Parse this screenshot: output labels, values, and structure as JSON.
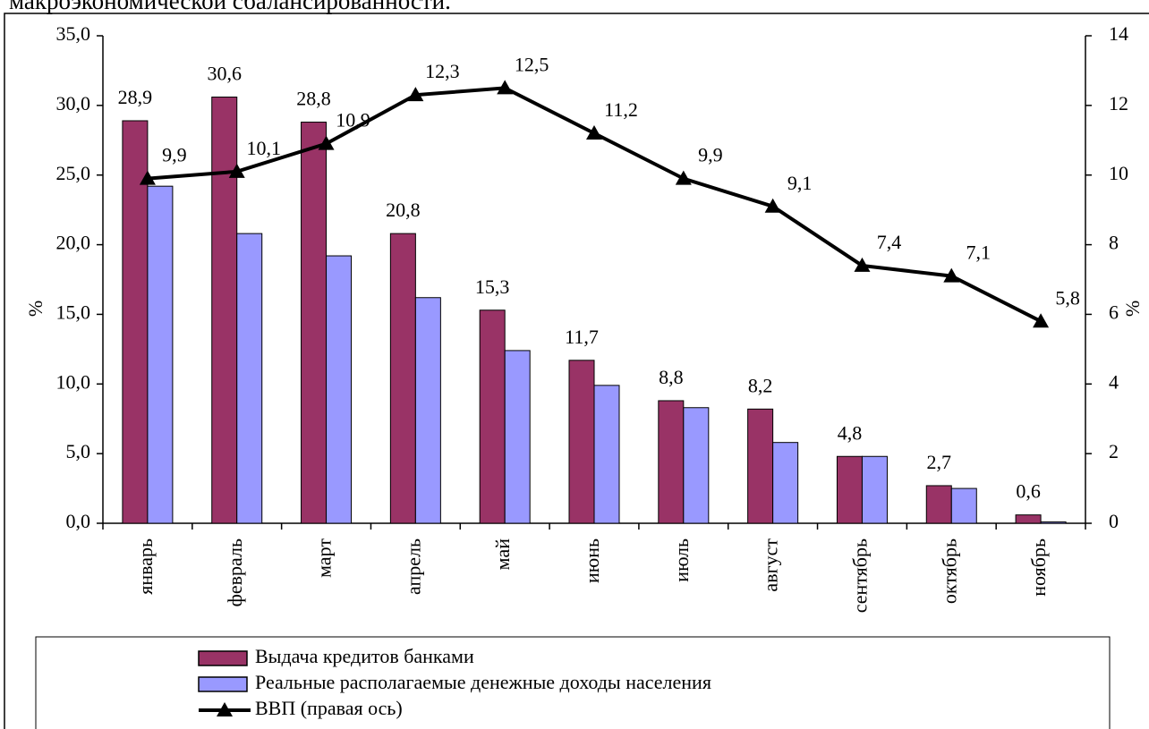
{
  "chart_data": {
    "type": "bar-line",
    "caption": "макроэкономической сбалансированности.",
    "ylabel": "%",
    "y2label": "%",
    "categories": [
      "январь",
      "февраль",
      "март",
      "апрель",
      "май",
      "июнь",
      "июль",
      "август",
      "сентябрь",
      "октябрь",
      "ноябрь"
    ],
    "series": [
      {
        "name": "Выдача кредитов банками",
        "color": "#993366",
        "type": "bar",
        "values": [
          28.9,
          30.6,
          28.8,
          20.8,
          15.3,
          11.7,
          8.8,
          8.2,
          4.8,
          2.7,
          0.6
        ],
        "value_labels": [
          "28,9",
          "30,6",
          "28,8",
          "20,8",
          "15,3",
          "11,7",
          "8,8",
          "8,2",
          "4,8",
          "2,7",
          "0,6"
        ]
      },
      {
        "name": "Реальные располагаемые денежные доходы населения",
        "color": "#9999ff",
        "type": "bar",
        "values": [
          24.2,
          20.8,
          19.2,
          16.2,
          12.4,
          9.9,
          8.3,
          5.8,
          4.8,
          2.5,
          0.1
        ]
      },
      {
        "name": "ВВП (правая ось)",
        "color": "#000000",
        "type": "line",
        "axis": "y2",
        "values": [
          9.9,
          10.1,
          10.9,
          12.3,
          12.5,
          11.2,
          9.9,
          9.1,
          7.4,
          7.1,
          5.8
        ],
        "value_labels": [
          "9,9",
          "10,1",
          "10,9",
          "12,3",
          "12,5",
          "11,2",
          "9,9",
          "9,1",
          "7,4",
          "7,1",
          "5,8"
        ]
      }
    ],
    "ylim": [
      0,
      35
    ],
    "yticks": [
      {
        "value": 0,
        "label": "0,0"
      },
      {
        "value": 5,
        "label": "5,0"
      },
      {
        "value": 10,
        "label": "10,0"
      },
      {
        "value": 15,
        "label": "15,0"
      },
      {
        "value": 20,
        "label": "20,0"
      },
      {
        "value": 25,
        "label": "25,0"
      },
      {
        "value": 30,
        "label": "30,0"
      },
      {
        "value": 35,
        "label": "35,0"
      }
    ],
    "y2lim": [
      0,
      14
    ],
    "y2ticks": [
      0,
      2,
      4,
      6,
      8,
      10,
      12,
      14
    ],
    "grid": false,
    "legend": "bottom"
  }
}
